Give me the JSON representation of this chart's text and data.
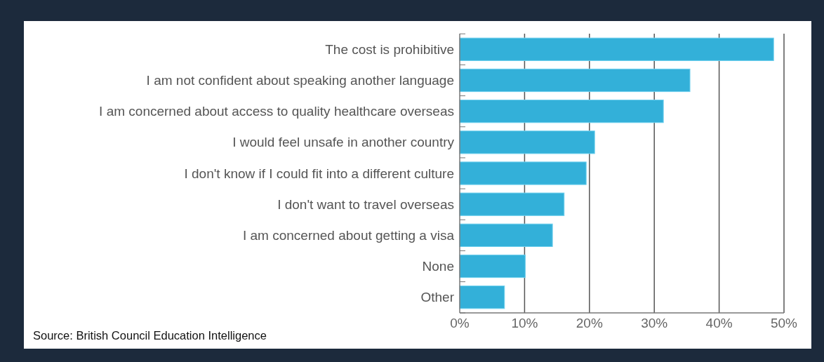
{
  "chart_data": {
    "type": "bar",
    "orientation": "horizontal",
    "categories": [
      "The cost is prohibitive",
      "I am not confident about speaking another language",
      "I am concerned about access to quality healthcare overseas",
      "I would feel unsafe in another country",
      "I don't know if I could fit into a different culture",
      "I don't want to travel overseas",
      "I am concerned about getting a visa",
      "None",
      "Other"
    ],
    "values": [
      48.4,
      35.5,
      31.4,
      20.8,
      19.5,
      16.1,
      14.3,
      10.1,
      6.9
    ],
    "color": "#33b0d9",
    "xlim": [
      0,
      50
    ],
    "xticks": [
      {
        "value": 0,
        "label": "0%"
      },
      {
        "value": 10,
        "label": "10%"
      },
      {
        "value": 20,
        "label": "20%"
      },
      {
        "value": 30,
        "label": "30%"
      },
      {
        "value": 40,
        "label": "40%"
      },
      {
        "value": 50,
        "label": "50%"
      }
    ],
    "grid": "x",
    "annotations": [
      "Source: British Council Education Intelligence"
    ]
  }
}
